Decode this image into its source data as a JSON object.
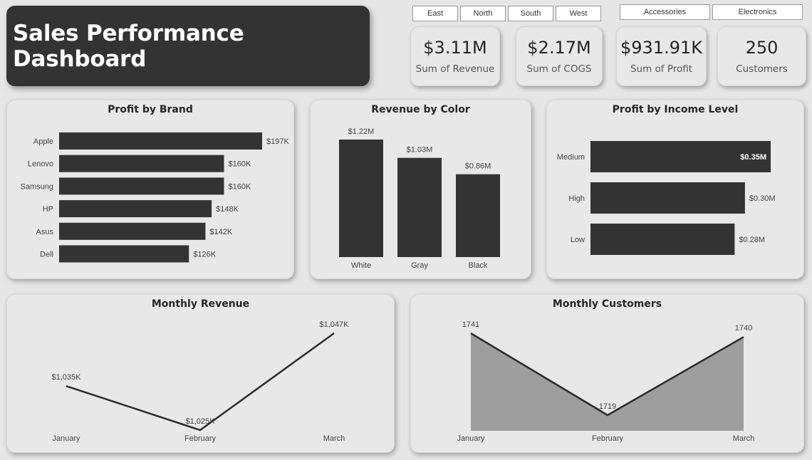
{
  "header": {
    "title": "Sales Performance Dashboard"
  },
  "region_slicer": [
    "East",
    "North",
    "South",
    "West"
  ],
  "category_slicer": [
    "Accessories",
    "Electronics"
  ],
  "kpis": [
    {
      "value": "$3.11M",
      "label": "Sum of Revenue"
    },
    {
      "value": "$2.17M",
      "label": "Sum of COGS"
    },
    {
      "value": "$931.91K",
      "label": "Sum of Profit"
    },
    {
      "value": "250",
      "label": "Customers"
    }
  ],
  "colors": {
    "bar": "#333333",
    "area": "#9e9e9e",
    "line": "#2b2b2b"
  },
  "chart_data": [
    {
      "type": "bar",
      "orientation": "horizontal",
      "title": "Profit by Brand",
      "categories": [
        "Apple",
        "Lenovo",
        "Samsung",
        "HP",
        "Asus",
        "Dell"
      ],
      "values": [
        197,
        160,
        160,
        148,
        142,
        126
      ],
      "labels": [
        "$197K",
        "$160K",
        "$160K",
        "$148K",
        "$142K",
        "$126K"
      ],
      "unit": "K"
    },
    {
      "type": "bar",
      "orientation": "vertical",
      "title": "Revenue by Color",
      "categories": [
        "White",
        "Gray",
        "Black"
      ],
      "values": [
        1.22,
        1.03,
        0.86
      ],
      "labels": [
        "$1.22M",
        "$1.03M",
        "$0.86M"
      ],
      "unit": "M"
    },
    {
      "type": "bar",
      "orientation": "horizontal",
      "title": "Profit by Income Level",
      "categories": [
        "Medium",
        "High",
        "Low"
      ],
      "values": [
        0.35,
        0.3,
        0.28
      ],
      "labels": [
        "$0.35M",
        "$0.30M",
        "$0.28M"
      ],
      "unit": "M"
    },
    {
      "type": "line",
      "title": "Monthly Revenue",
      "categories": [
        "January",
        "February",
        "March"
      ],
      "values": [
        1035,
        1025,
        1047
      ],
      "labels": [
        "$1,035K",
        "$1,025K",
        "$1,047K"
      ],
      "unit": "K"
    },
    {
      "type": "area",
      "title": "Monthly Customers",
      "categories": [
        "January",
        "February",
        "March"
      ],
      "values": [
        1741,
        1719,
        1740
      ],
      "labels": [
        "1741",
        "1719",
        "1740"
      ]
    }
  ]
}
